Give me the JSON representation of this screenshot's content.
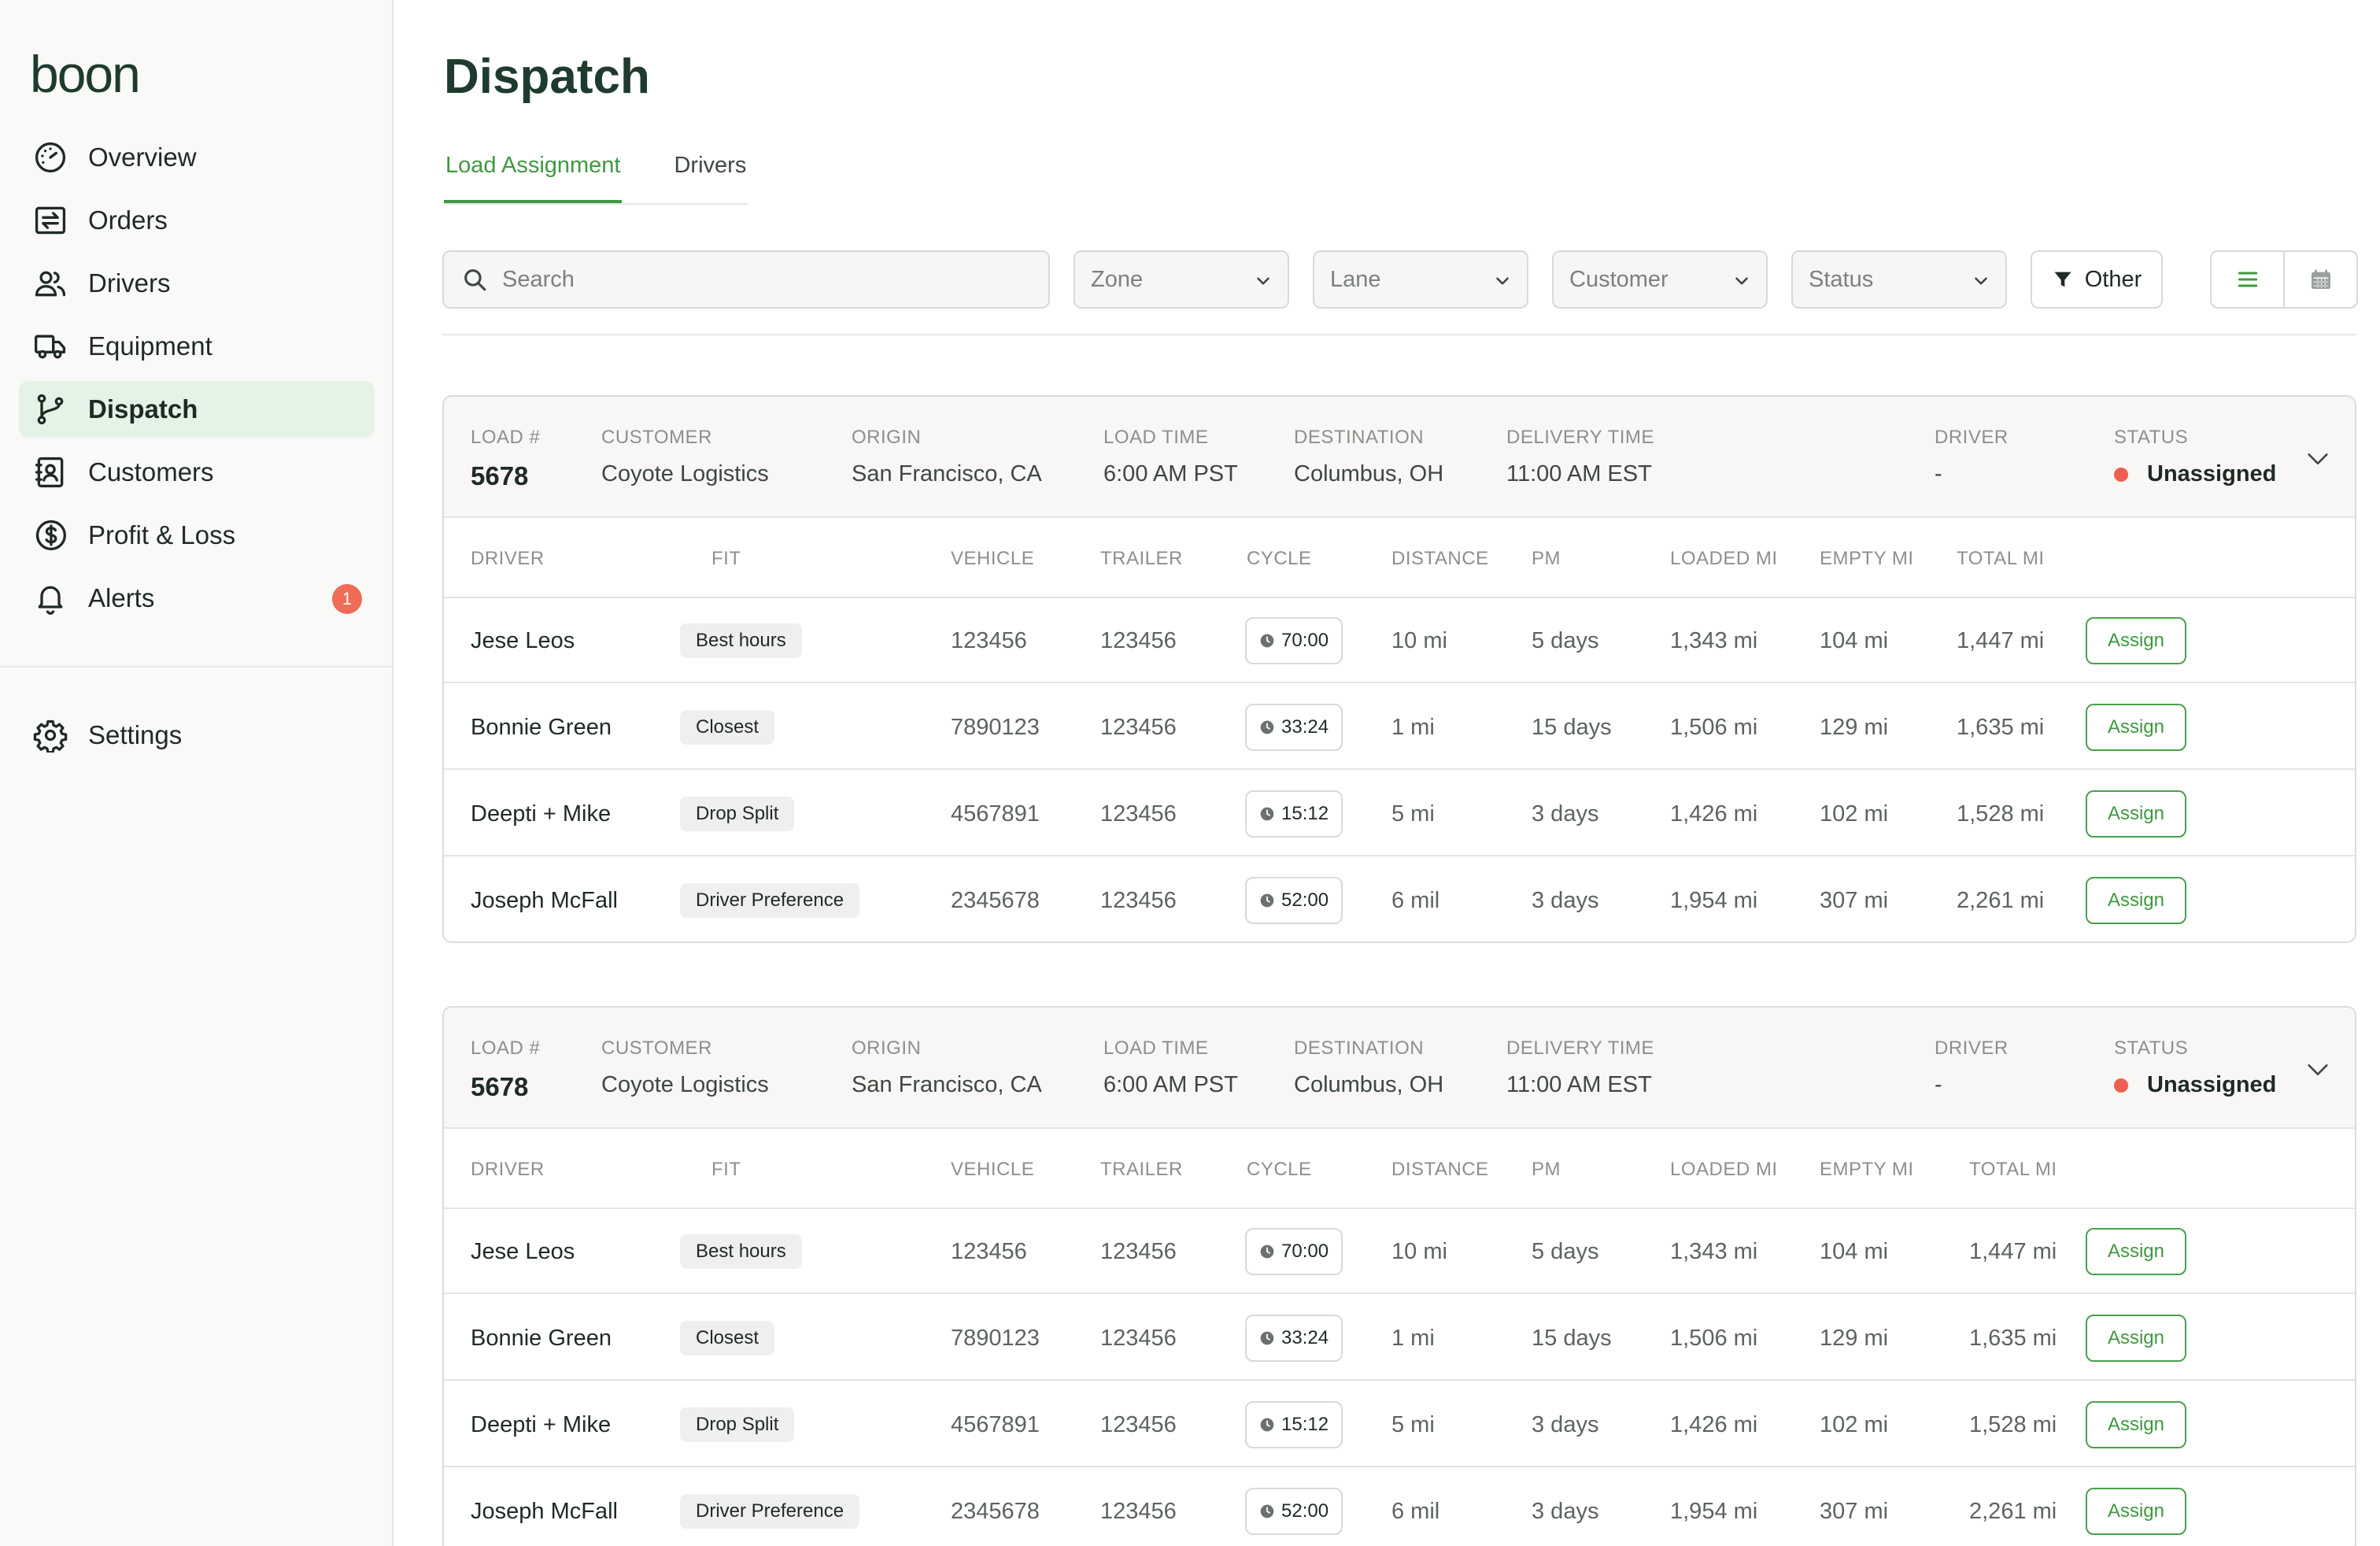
{
  "app": {
    "logo": "boon"
  },
  "sidebar": {
    "items": [
      {
        "label": "Overview",
        "icon": "gauge-icon"
      },
      {
        "label": "Orders",
        "icon": "arrows-exchange-icon"
      },
      {
        "label": "Drivers",
        "icon": "users-icon"
      },
      {
        "label": "Equipment",
        "icon": "truck-icon"
      },
      {
        "label": "Dispatch",
        "icon": "route-branch-icon",
        "active": true
      },
      {
        "label": "Customers",
        "icon": "address-book-icon"
      },
      {
        "label": "Profit & Loss",
        "icon": "dollar-circle-icon"
      },
      {
        "label": "Alerts",
        "icon": "bell-icon",
        "badge": "1"
      }
    ],
    "settings": {
      "label": "Settings",
      "icon": "gear-icon"
    }
  },
  "page": {
    "title": "Dispatch",
    "tabs": [
      {
        "label": "Load Assignment",
        "active": true
      },
      {
        "label": "Drivers",
        "active": false
      }
    ]
  },
  "filters": {
    "search_placeholder": "Search",
    "selects": [
      "Zone",
      "Lane",
      "Customer",
      "Status"
    ],
    "other_label": "Other"
  },
  "colors": {
    "accent": "#3e9a40",
    "active_nav_bg": "#e5f3e7",
    "status_unassigned": "#ef5f4f",
    "badge": "#ef6c56"
  },
  "header_labels": {
    "load": "LOAD #",
    "customer": "CUSTOMER",
    "origin": "ORIGIN",
    "load_time": "LOAD TIME",
    "destination": "DESTINATION",
    "delivery_time": "DELIVERY TIME",
    "driver": "DRIVER",
    "status": "STATUS"
  },
  "column_headers": {
    "driver": "DRIVER",
    "fit": "FIT",
    "vehicle": "VEHICLE",
    "trailer": "TRAILER",
    "cycle": "CYCLE",
    "distance": "DISTANCE",
    "pm": "PM",
    "loaded_mi": "LOADED MI",
    "empty_mi": "EMPTY MI",
    "total_mi": "TOTAL MI"
  },
  "assign_label": "Assign",
  "loads": [
    {
      "load_number": "5678",
      "customer": "Coyote Logistics",
      "origin": "San Francisco, CA",
      "load_time": "6:00 AM PST",
      "destination": "Columbus, OH",
      "delivery_time": "11:00 AM EST",
      "driver": "-",
      "status": "Unassigned",
      "rows": [
        {
          "driver": "Jese Leos",
          "fit": "Best hours",
          "vehicle": "123456",
          "trailer": "123456",
          "cycle": "70:00",
          "distance": "10 mi",
          "pm": "5 days",
          "loaded_mi": "1,343 mi",
          "empty_mi": "104 mi",
          "total_mi": "1,447 mi"
        },
        {
          "driver": "Bonnie Green",
          "fit": "Closest",
          "vehicle": "7890123",
          "trailer": "123456",
          "cycle": "33:24",
          "distance": "1 mi",
          "pm": "15 days",
          "loaded_mi": "1,506 mi",
          "empty_mi": "129 mi",
          "total_mi": "1,635 mi"
        },
        {
          "driver": "Deepti + Mike",
          "fit": "Drop Split",
          "vehicle": "4567891",
          "trailer": "123456",
          "cycle": "15:12",
          "distance": "5 mi",
          "pm": "3 days",
          "loaded_mi": "1,426 mi",
          "empty_mi": "102 mi",
          "total_mi": "1,528 mi"
        },
        {
          "driver": "Joseph McFall",
          "fit": "Driver Preference",
          "vehicle": "2345678",
          "trailer": "123456",
          "cycle": "52:00",
          "distance": "6 mil",
          "pm": "3 days",
          "loaded_mi": "1,954 mi",
          "empty_mi": "307 mi",
          "total_mi": "2,261 mi"
        }
      ]
    },
    {
      "load_number": "5678",
      "customer": "Coyote Logistics",
      "origin": "San Francisco, CA",
      "load_time": "6:00 AM PST",
      "destination": "Columbus, OH",
      "delivery_time": "11:00 AM EST",
      "driver": "-",
      "status": "Unassigned",
      "rows": [
        {
          "driver": "Jese Leos",
          "fit": "Best hours",
          "vehicle": "123456",
          "trailer": "123456",
          "cycle": "70:00",
          "distance": "10 mi",
          "pm": "5 days",
          "loaded_mi": "1,343 mi",
          "empty_mi": "104 mi",
          "total_mi": "1,447 mi"
        },
        {
          "driver": "Bonnie Green",
          "fit": "Closest",
          "vehicle": "7890123",
          "trailer": "123456",
          "cycle": "33:24",
          "distance": "1 mi",
          "pm": "15 days",
          "loaded_mi": "1,506 mi",
          "empty_mi": "129 mi",
          "total_mi": "1,635 mi"
        },
        {
          "driver": "Deepti + Mike",
          "fit": "Drop Split",
          "vehicle": "4567891",
          "trailer": "123456",
          "cycle": "15:12",
          "distance": "5 mi",
          "pm": "3 days",
          "loaded_mi": "1,426 mi",
          "empty_mi": "102 mi",
          "total_mi": "1,528 mi"
        },
        {
          "driver": "Joseph McFall",
          "fit": "Driver Preference",
          "vehicle": "2345678",
          "trailer": "123456",
          "cycle": "52:00",
          "distance": "6 mil",
          "pm": "3 days",
          "loaded_mi": "1,954 mi",
          "empty_mi": "307 mi",
          "total_mi": "2,261 mi"
        }
      ]
    }
  ]
}
